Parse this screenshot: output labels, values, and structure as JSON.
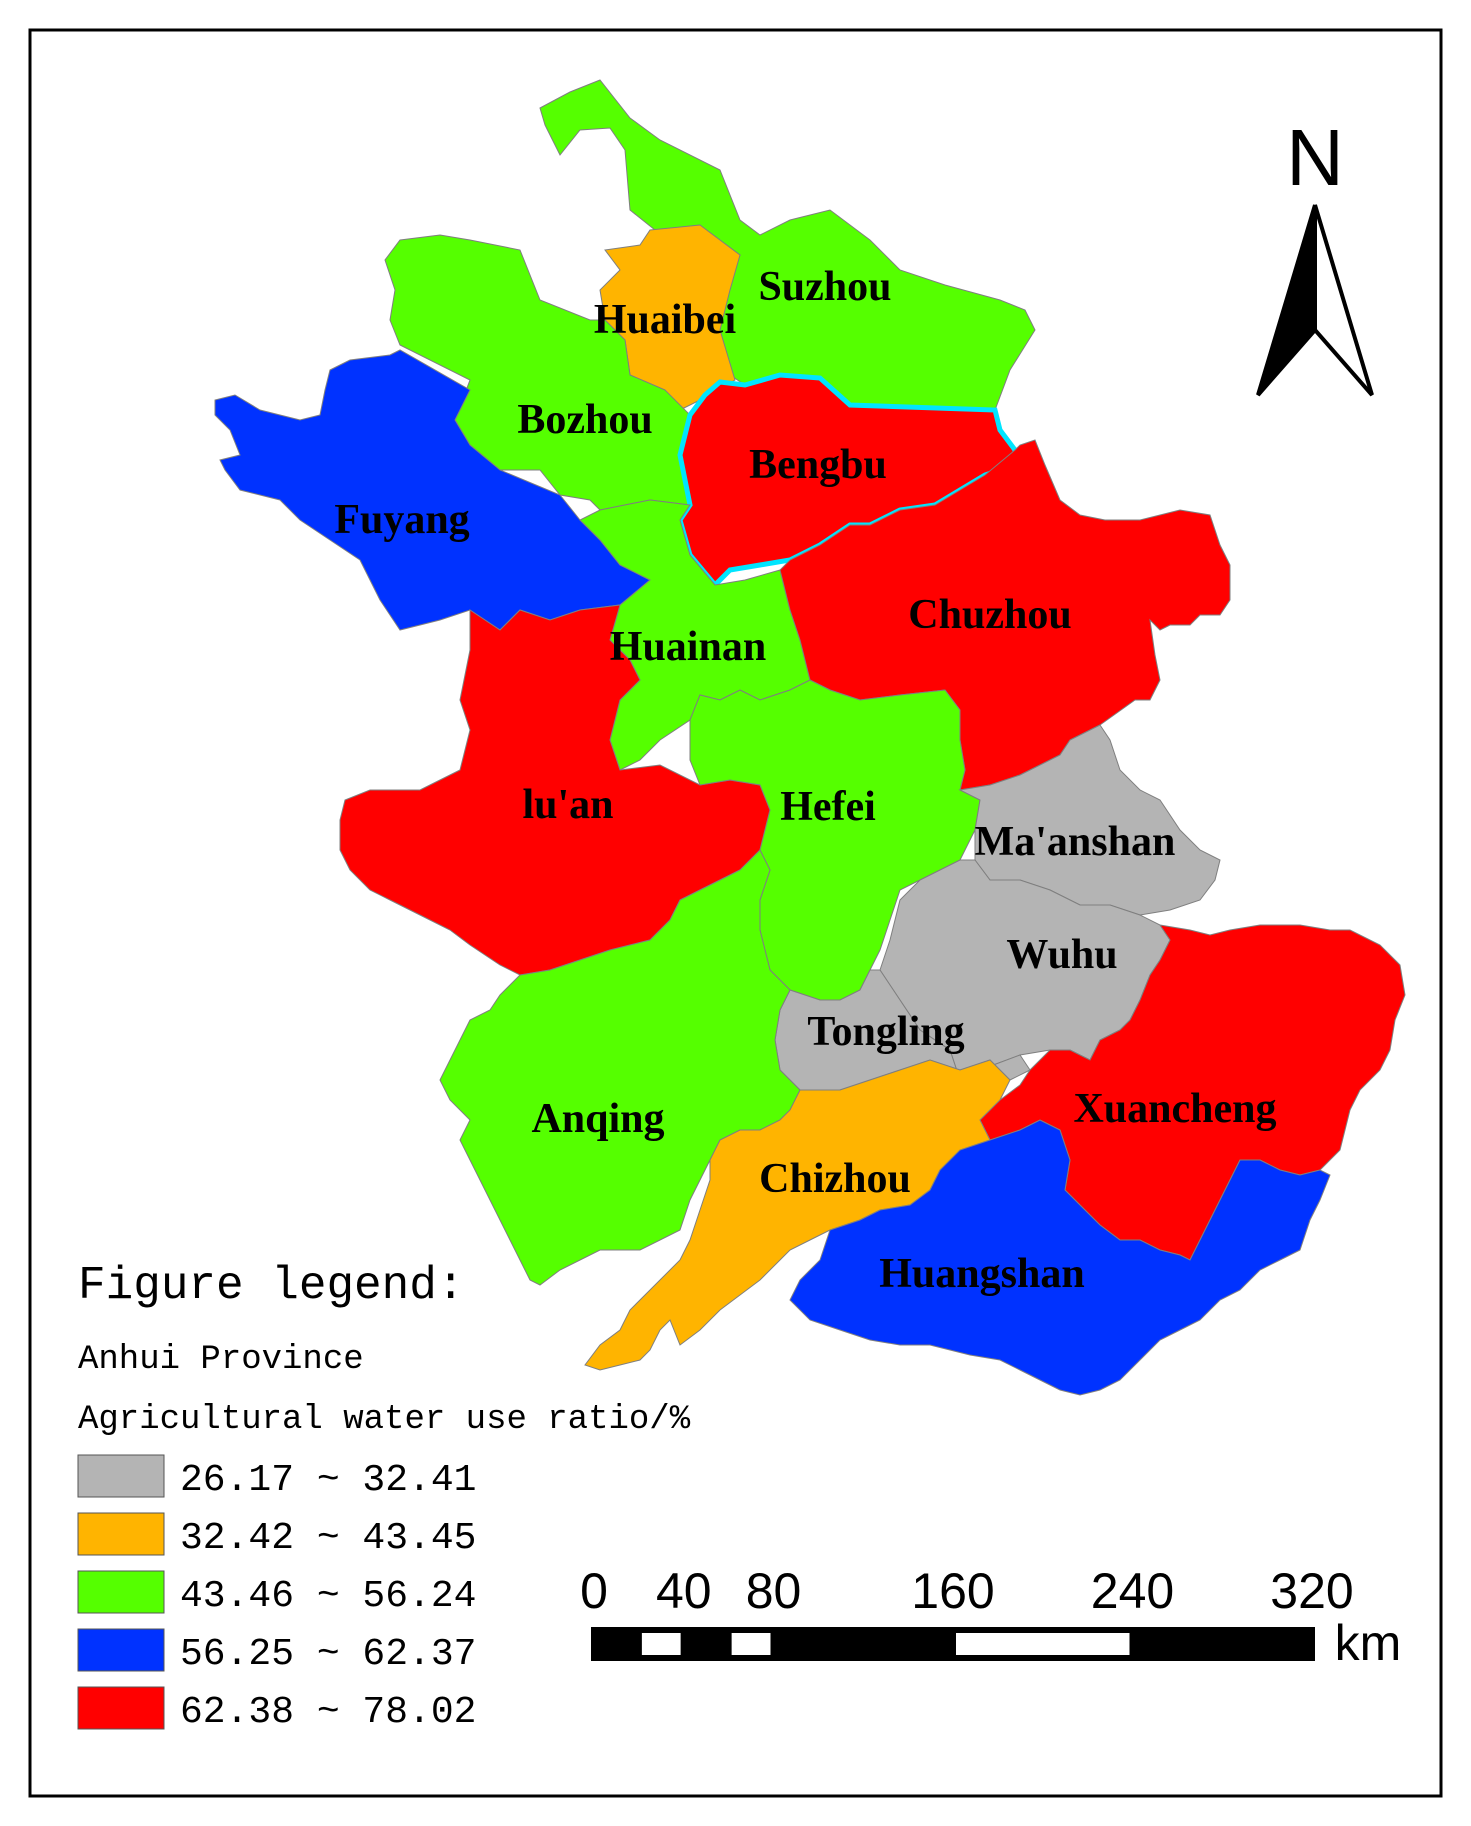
{
  "map": {
    "regions": [
      {
        "name": "Suzhou",
        "class_index": 2
      },
      {
        "name": "Huaibei",
        "class_index": 1
      },
      {
        "name": "Bozhou",
        "class_index": 2
      },
      {
        "name": "Fuyang",
        "class_index": 3
      },
      {
        "name": "Bengbu",
        "class_index": 4,
        "highlighted": true
      },
      {
        "name": "Huainan",
        "class_index": 2
      },
      {
        "name": "Chuzhou",
        "class_index": 4
      },
      {
        "name": "lu'an",
        "class_index": 4
      },
      {
        "name": "Hefei",
        "class_index": 2
      },
      {
        "name": "Ma'anshan",
        "class_index": 0
      },
      {
        "name": "Wuhu",
        "class_index": 0
      },
      {
        "name": "Tongling",
        "class_index": 0
      },
      {
        "name": "Xuancheng",
        "class_index": 4
      },
      {
        "name": "Anqing",
        "class_index": 2
      },
      {
        "name": "Chizhou",
        "class_index": 1
      },
      {
        "name": "Huangshan",
        "class_index": 3
      }
    ],
    "highlight_color": "#00e5ff",
    "boundary_color": "#7f7f7f"
  },
  "north_arrow": {
    "label": "N"
  },
  "legend": {
    "title": "Figure legend:",
    "line1": "Anhui Province",
    "line2": "Agricultural water use ratio/%",
    "classes": [
      {
        "range": "26.17 ~ 32.41",
        "color": "#b4b4b4"
      },
      {
        "range": "32.42 ~ 43.45",
        "color": "#ffb400"
      },
      {
        "range": "43.46 ~ 56.24",
        "color": "#55ff00"
      },
      {
        "range": "56.25 ~ 62.37",
        "color": "#0032ff"
      },
      {
        "range": "62.38 ~ 78.02",
        "color": "#ff0000"
      }
    ]
  },
  "scale_bar": {
    "ticks": [
      "0",
      "40",
      "80",
      "160",
      "240",
      "320"
    ],
    "tick_values": [
      0,
      20,
      40,
      60,
      80,
      160,
      240,
      320
    ],
    "unit": "km"
  }
}
